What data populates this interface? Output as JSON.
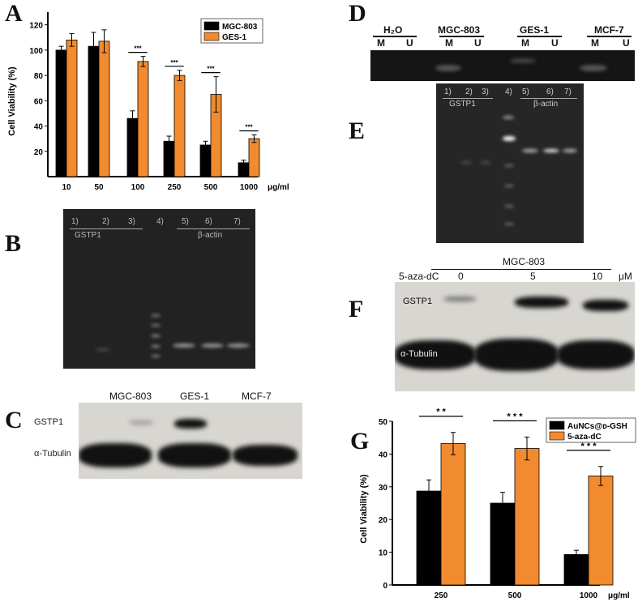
{
  "panels": {
    "a": "A",
    "b": "B",
    "c": "C",
    "d": "D",
    "e": "E",
    "f": "F",
    "g": "G"
  },
  "chart_data": [
    {
      "type": "bar",
      "panel": "A",
      "categories": [
        "10",
        "50",
        "100",
        "250",
        "500",
        "1000"
      ],
      "xunit": "μg/ml",
      "ylabel": "Cell Viability (%)",
      "ylim": [
        0,
        130
      ],
      "yticks": [
        20,
        40,
        60,
        80,
        100,
        120
      ],
      "series": [
        {
          "name": "MGC-803",
          "color": "#000000",
          "values": [
            100,
            103,
            46,
            28,
            25,
            11
          ],
          "errors": [
            3,
            11,
            6,
            4,
            3,
            2
          ]
        },
        {
          "name": "GES-1",
          "color": "#f28a30",
          "values": [
            108,
            107,
            91,
            80,
            65,
            30
          ],
          "errors": [
            5,
            9,
            4,
            4,
            14,
            3
          ]
        }
      ],
      "significance": [
        "",
        "",
        "***",
        "***",
        "***",
        "***"
      ],
      "legend": "top-right"
    },
    {
      "type": "bar",
      "panel": "G",
      "categories": [
        "250",
        "500",
        "1000"
      ],
      "xunit": "μg/ml",
      "ylabel": "Cell Viability (%)",
      "ylim": [
        0,
        50
      ],
      "yticks": [
        0,
        10,
        20,
        30,
        40,
        50
      ],
      "series": [
        {
          "name": "AuNCs@ᴅ-GSH",
          "color": "#000000",
          "values": [
            28.7,
            25,
            9.3
          ],
          "errors": [
            3.4,
            3.3,
            1.3
          ]
        },
        {
          "name": "5-aza-dC",
          "color": "#f28a30",
          "values": [
            43.2,
            41.7,
            33.3
          ],
          "errors": [
            3.4,
            3.5,
            2.9
          ]
        }
      ],
      "significance": [
        "* *",
        "* * *",
        "* * *"
      ],
      "legend": "top-right"
    }
  ],
  "gel_b": {
    "lanes": [
      "1)",
      "2)",
      "3)",
      "4)",
      "5)",
      "6)",
      "7)"
    ],
    "group1": "GSTP1",
    "group2": "β-actin"
  },
  "gel_e": {
    "lanes": [
      "1)",
      "2)",
      "3)",
      "4)",
      "5)",
      "6)",
      "7)"
    ],
    "group1": "GSTP1",
    "group2": "β-actin"
  },
  "blot_c": {
    "samples": [
      "MGC-803",
      "GES-1",
      "MCF-7"
    ],
    "rows": [
      "GSTP1",
      "α-Tubulin"
    ]
  },
  "gel_d": {
    "groups": [
      "H₂O",
      "MGC-803",
      "GES-1",
      "MCF-7"
    ],
    "lane_m": "M",
    "lane_u": "U"
  },
  "blot_f": {
    "cell_line": "MGC-803",
    "treatment": "5-aza-dC",
    "doses": [
      "0",
      "5",
      "10"
    ],
    "unit": "μM",
    "rows": [
      "GSTP1",
      "α-Tubulin"
    ]
  }
}
